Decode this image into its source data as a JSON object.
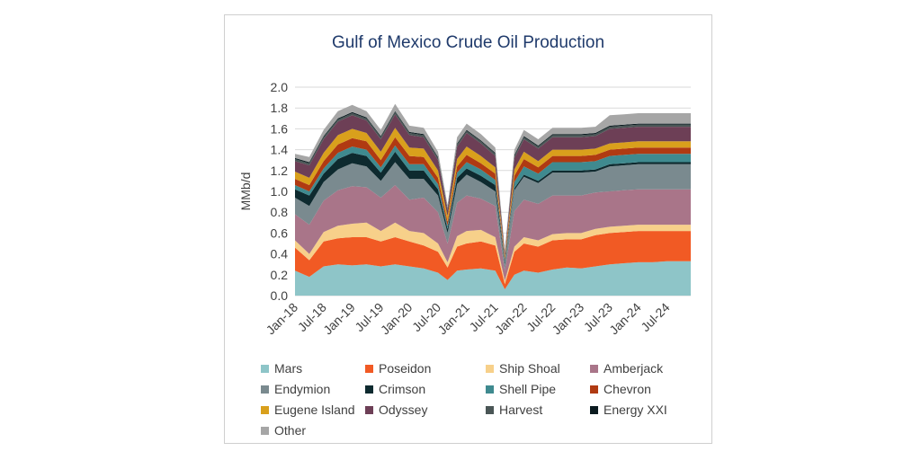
{
  "chart_data": {
    "type": "area",
    "stacked": true,
    "title": "Gulf of Mexico Crude Oil Production",
    "ylabel": "MMb/d",
    "xlabel": "",
    "ylim": [
      0,
      2.0
    ],
    "yticks": [
      "0.0",
      "0.2",
      "0.4",
      "0.6",
      "0.8",
      "1.0",
      "1.2",
      "1.4",
      "1.6",
      "1.8",
      "2.0"
    ],
    "xtick_labels": [
      "Jan-18",
      "Jul-18",
      "Jan-19",
      "Jul-19",
      "Jan-20",
      "Jul-20",
      "Jan-21",
      "Jul-21",
      "Jan-22",
      "Jul-22",
      "Jan-23",
      "Jul-23",
      "Jan-24",
      "Jul-24"
    ],
    "grid": true,
    "legend_position": "bottom",
    "x": [
      "Jan-18",
      "Apr-18",
      "Jul-18",
      "Oct-18",
      "Jan-19",
      "Apr-19",
      "Jul-19",
      "Oct-19",
      "Jan-20",
      "Apr-20",
      "Jul-20",
      "Sep-20",
      "Nov-20",
      "Jan-21",
      "Apr-21",
      "Jul-21",
      "Sep-21",
      "Nov-21",
      "Jan-22",
      "Apr-22",
      "Jul-22",
      "Oct-22",
      "Jan-23",
      "Apr-23",
      "Jul-23",
      "Oct-23",
      "Jan-24",
      "Apr-24",
      "Jul-24",
      "Dec-24"
    ],
    "series": [
      {
        "name": "Mars",
        "color": "#8ec5c8",
        "values": [
          0.24,
          0.18,
          0.28,
          0.3,
          0.29,
          0.3,
          0.28,
          0.3,
          0.28,
          0.26,
          0.22,
          0.15,
          0.24,
          0.25,
          0.26,
          0.24,
          0.06,
          0.2,
          0.24,
          0.22,
          0.25,
          0.27,
          0.26,
          0.28,
          0.3,
          0.31,
          0.32,
          0.32,
          0.33,
          0.33
        ]
      },
      {
        "name": "Poseidon",
        "color": "#f15a24",
        "values": [
          0.22,
          0.16,
          0.24,
          0.25,
          0.27,
          0.26,
          0.24,
          0.26,
          0.24,
          0.22,
          0.2,
          0.12,
          0.23,
          0.25,
          0.26,
          0.24,
          0.05,
          0.22,
          0.26,
          0.25,
          0.28,
          0.27,
          0.28,
          0.3,
          0.3,
          0.3,
          0.3,
          0.3,
          0.29,
          0.29
        ]
      },
      {
        "name": "Ship Shoal",
        "color": "#f7d08a",
        "values": [
          0.07,
          0.06,
          0.09,
          0.12,
          0.13,
          0.14,
          0.1,
          0.14,
          0.1,
          0.12,
          0.08,
          0.05,
          0.1,
          0.12,
          0.11,
          0.08,
          0.03,
          0.05,
          0.06,
          0.06,
          0.06,
          0.06,
          0.06,
          0.06,
          0.06,
          0.06,
          0.06,
          0.06,
          0.06,
          0.06
        ]
      },
      {
        "name": "Amberjack",
        "color": "#a97589",
        "values": [
          0.25,
          0.28,
          0.3,
          0.34,
          0.36,
          0.34,
          0.32,
          0.36,
          0.3,
          0.34,
          0.3,
          0.18,
          0.32,
          0.34,
          0.3,
          0.3,
          0.1,
          0.34,
          0.36,
          0.35,
          0.37,
          0.36,
          0.36,
          0.35,
          0.34,
          0.34,
          0.34,
          0.34,
          0.34,
          0.34
        ]
      },
      {
        "name": "Endymion",
        "color": "#7a8a8f",
        "values": [
          0.16,
          0.18,
          0.18,
          0.2,
          0.22,
          0.2,
          0.16,
          0.22,
          0.2,
          0.18,
          0.16,
          0.1,
          0.18,
          0.2,
          0.16,
          0.14,
          0.06,
          0.2,
          0.22,
          0.2,
          0.22,
          0.22,
          0.22,
          0.2,
          0.24,
          0.24,
          0.24,
          0.24,
          0.24,
          0.24
        ]
      },
      {
        "name": "Crimson",
        "color": "#0e2a2f",
        "values": [
          0.08,
          0.1,
          0.08,
          0.1,
          0.1,
          0.1,
          0.08,
          0.1,
          0.08,
          0.08,
          0.06,
          0.04,
          0.06,
          0.06,
          0.06,
          0.06,
          0.02,
          0.02,
          0.02,
          0.02,
          0.02,
          0.02,
          0.02,
          0.02,
          0.02,
          0.02,
          0.02,
          0.02,
          0.02,
          0.02
        ]
      },
      {
        "name": "Shell Pipe",
        "color": "#3f8a8f",
        "values": [
          0.04,
          0.04,
          0.05,
          0.06,
          0.06,
          0.06,
          0.05,
          0.06,
          0.06,
          0.06,
          0.05,
          0.03,
          0.05,
          0.06,
          0.06,
          0.05,
          0.02,
          0.06,
          0.08,
          0.07,
          0.08,
          0.08,
          0.08,
          0.08,
          0.08,
          0.08,
          0.08,
          0.08,
          0.08,
          0.08
        ]
      },
      {
        "name": "Chevron",
        "color": "#b03a12",
        "values": [
          0.06,
          0.06,
          0.07,
          0.08,
          0.08,
          0.08,
          0.07,
          0.08,
          0.08,
          0.07,
          0.06,
          0.04,
          0.06,
          0.07,
          0.06,
          0.06,
          0.02,
          0.06,
          0.07,
          0.06,
          0.06,
          0.06,
          0.06,
          0.06,
          0.06,
          0.06,
          0.06,
          0.06,
          0.06,
          0.06
        ]
      },
      {
        "name": "Eugene Island",
        "color": "#d9a01c",
        "values": [
          0.07,
          0.07,
          0.08,
          0.09,
          0.09,
          0.08,
          0.08,
          0.09,
          0.08,
          0.08,
          0.07,
          0.05,
          0.07,
          0.08,
          0.07,
          0.06,
          0.02,
          0.06,
          0.07,
          0.06,
          0.06,
          0.06,
          0.06,
          0.06,
          0.06,
          0.06,
          0.06,
          0.06,
          0.06,
          0.06
        ]
      },
      {
        "name": "Odyssey",
        "color": "#6d3f56",
        "values": [
          0.1,
          0.12,
          0.13,
          0.13,
          0.13,
          0.12,
          0.12,
          0.13,
          0.12,
          0.11,
          0.1,
          0.06,
          0.12,
          0.13,
          0.12,
          0.11,
          0.03,
          0.11,
          0.12,
          0.12,
          0.12,
          0.12,
          0.12,
          0.12,
          0.14,
          0.14,
          0.14,
          0.14,
          0.14,
          0.14
        ]
      },
      {
        "name": "Harvest",
        "color": "#4a5656",
        "values": [
          0.02,
          0.02,
          0.02,
          0.02,
          0.02,
          0.02,
          0.02,
          0.02,
          0.02,
          0.02,
          0.02,
          0.01,
          0.02,
          0.02,
          0.02,
          0.02,
          0.01,
          0.02,
          0.02,
          0.02,
          0.02,
          0.02,
          0.02,
          0.02,
          0.02,
          0.02,
          0.02,
          0.02,
          0.02,
          0.02
        ]
      },
      {
        "name": "Energy XXI",
        "color": "#0a1a1f",
        "values": [
          0.01,
          0.01,
          0.01,
          0.01,
          0.01,
          0.01,
          0.01,
          0.01,
          0.01,
          0.01,
          0.01,
          0.01,
          0.01,
          0.01,
          0.01,
          0.01,
          0.0,
          0.01,
          0.01,
          0.01,
          0.01,
          0.01,
          0.01,
          0.01,
          0.01,
          0.01,
          0.01,
          0.01,
          0.01,
          0.01
        ]
      },
      {
        "name": "Other",
        "color": "#a6a6a6",
        "values": [
          0.04,
          0.05,
          0.06,
          0.07,
          0.07,
          0.06,
          0.06,
          0.07,
          0.06,
          0.06,
          0.05,
          0.03,
          0.06,
          0.06,
          0.06,
          0.05,
          0.02,
          0.05,
          0.06,
          0.06,
          0.06,
          0.06,
          0.06,
          0.06,
          0.1,
          0.1,
          0.1,
          0.1,
          0.1,
          0.1
        ]
      }
    ]
  }
}
